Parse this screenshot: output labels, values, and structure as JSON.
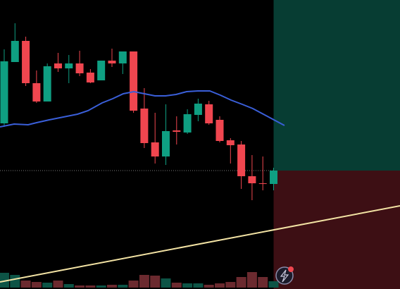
{
  "chart_data": {
    "type": "candlestick",
    "xlim": [
      -0.39,
      36.73
    ],
    "ylim": [
      0,
      410
    ],
    "up_color": "#0f9f82",
    "down_color": "#f0464f",
    "open": [
      235,
      322,
      352,
      292,
      266,
      320,
      313,
      320,
      307,
      296,
      324,
      320,
      337,
      256,
      208,
      188,
      225,
      222,
      247,
      262,
      240,
      211,
      205,
      160,
      150,
      149
    ],
    "close": [
      323,
      352,
      292,
      266,
      316,
      313,
      320,
      306,
      293,
      324,
      320,
      337,
      253,
      207,
      188,
      224,
      223,
      248,
      263,
      235,
      210,
      204,
      160,
      150,
      149,
      168
    ],
    "high": [
      340,
      377,
      358,
      310,
      320,
      335,
      332,
      338,
      312,
      324,
      341,
      337,
      337,
      285,
      250,
      262,
      245,
      255,
      270,
      267,
      245,
      214,
      210,
      190,
      188,
      172
    ],
    "low": [
      230,
      322,
      288,
      264,
      266,
      308,
      292,
      302,
      292,
      296,
      315,
      305,
      250,
      200,
      178,
      176,
      205,
      220,
      238,
      233,
      208,
      178,
      142,
      126,
      140,
      140
    ],
    "volume": [
      21,
      18,
      10,
      8,
      7,
      10,
      5,
      3,
      3,
      3,
      4,
      4,
      10,
      18,
      17,
      13,
      7,
      6,
      6,
      4,
      6,
      8,
      15,
      22,
      15,
      9
    ],
    "volume_lim": [
      0,
      410
    ],
    "volume_up_color": "#0d5446",
    "volume_down_color": "#6b2a2f",
    "ma": {
      "color": "#3a5fd9",
      "x": [
        -0.39,
        0.92,
        2.22,
        3.01,
        4.18,
        5.49,
        6.8,
        7.78,
        9.08,
        10.07,
        11.05,
        12.03,
        13.01,
        13.99,
        14.97,
        15.95,
        16.93,
        17.97,
        19.08,
        20.06,
        21.05,
        22.09,
        23.07,
        24.05,
        25.03,
        26.01
      ],
      "values": [
        230,
        234,
        233,
        236,
        240,
        244,
        248,
        253,
        264,
        270,
        277,
        280,
        277,
        274,
        274,
        276,
        280,
        281,
        281,
        275,
        268,
        262,
        256,
        248,
        240,
        232
      ]
    },
    "trend_line": {
      "color": "#f3e3a4",
      "x": [
        -0.39,
        36.73
      ],
      "values": [
        10,
        118
      ]
    },
    "price_line": 168,
    "zone_start": 25,
    "zones": [
      {
        "color": "#073d33",
        "from": 168,
        "to": 410
      },
      {
        "color": "#3d0f14",
        "from": 0,
        "to": 168
      }
    ]
  }
}
